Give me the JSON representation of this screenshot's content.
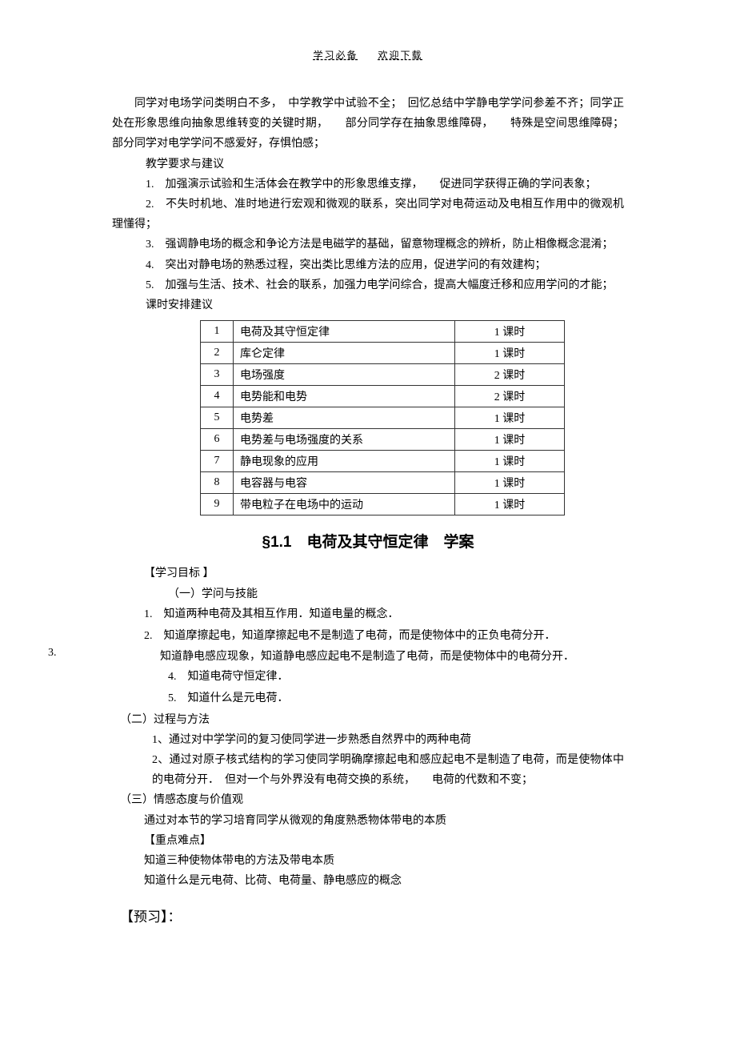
{
  "header": {
    "left": "学习必备",
    "right": "欢迎下载"
  },
  "intro": {
    "p1": "同学对电场学问类明白不多，　中学教学中试验不全；　回忆总结中学静电学学问参差不齐；同学正处在形象思维向抽象思维转变的关键时期，　　部分同学存在抽象思维障碍，　　特殊是空间思维障碍；部分同学对电学学问不感爱好，存惧怕感；",
    "p2": "教学要求与建议",
    "items": [
      "1.　加强演示试验和生活体会在教学中的形象思维支撑，　　促进同学获得正确的学问表象；",
      "2.　不失时机地、准时地进行宏观和微观的联系，突出同学对电荷运动及电相互作用中的微观机理懂得；",
      "3.　强调静电场的概念和争论方法是电磁学的基础，留意物理概念的辨析，防止相像概念混淆；",
      "4.　突出对静电场的熟悉过程，突出类比思维方法的应用，促进学问的有效建构；",
      "5.　加强与生活、技术、社会的联系，加强力电学问综合，提高大幅度迁移和应用学问的才能；"
    ],
    "p3": "课时安排建议"
  },
  "schedule": {
    "rows": [
      {
        "num": "1",
        "topic": "电荷及其守恒定律",
        "hours": "1 课时"
      },
      {
        "num": "2",
        "topic": "库仑定律",
        "hours": "1 课时"
      },
      {
        "num": "3",
        "topic": "电场强度",
        "hours": "2 课时"
      },
      {
        "num": "4",
        "topic": "电势能和电势",
        "hours": "2 课时"
      },
      {
        "num": "5",
        "topic": "电势差",
        "hours": "1 课时"
      },
      {
        "num": "6",
        "topic": "电势差与电场强度的关系",
        "hours": "1 课时"
      },
      {
        "num": "7",
        "topic": "静电现象的应用",
        "hours": "1 课时"
      },
      {
        "num": "8",
        "topic": "电容器与电容",
        "hours": "1 课时"
      },
      {
        "num": "9",
        "topic": "带电粒子在电场中的运动",
        "hours": "1 课时"
      }
    ]
  },
  "section_title": "§1.1　电荷及其守恒定律　学案",
  "goals": {
    "heading": "【学习目标 】",
    "sub1": "（一）学问与技能",
    "g1": "1.　知道两种电荷及其相互作用．知道电量的概念．",
    "g2": "2.　知道摩擦起电，知道摩擦起电不是制造了电荷，而是使物体中的正负电荷分开．",
    "g3_label": "3.",
    "g3": "知道静电感应现象，知道静电感应起电不是制造了电荷，而是使物体中的电荷分开．",
    "g4": "4.　知道电荷守恒定律．",
    "g5": "5.　知道什么是元电荷．",
    "sub2": "（二）过程与方法",
    "m1": "1、通过对中学学问的复习使同学进一步熟悉自然界中的两种电荷",
    "m2": "2、通过对原子核式结构的学习使同学明确摩擦起电和感应起电不是制造了电荷，而是使物体中的电荷分开．　但对一个与外界没有电荷交换的系统，　　电荷的代数和不变；",
    "sub3": "（三）情感态度与价值观",
    "a1": "通过对本节的学习培育同学从微观的角度熟悉物体带电的本质",
    "kp_heading": "【重点难点】",
    "kp1": "知道三种使物体带电的方法及带电本质",
    "kp2": "知道什么是元电荷、比荷、电荷量、静电感应的概念"
  },
  "preview_heading": "【预习】："
}
